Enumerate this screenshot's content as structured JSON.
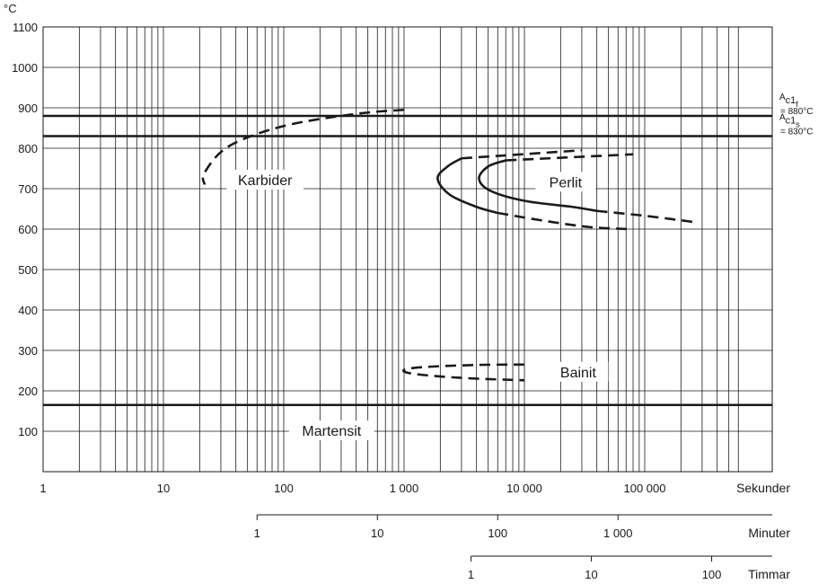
{
  "chart_data": {
    "type": "line",
    "title": "",
    "y_unit": "°C",
    "ylim": [
      0,
      1100
    ],
    "y_ticks": [
      "1100",
      "1000",
      "900",
      "800",
      "700",
      "600",
      "500",
      "400",
      "300",
      "200",
      "100"
    ],
    "x_scale": "log",
    "xlim": [
      1,
      600000
    ],
    "x_axes": [
      {
        "name": "Sekunder",
        "ticks": [
          {
            "label": "1",
            "seconds": 1
          },
          {
            "label": "10",
            "seconds": 10
          },
          {
            "label": "100",
            "seconds": 100
          },
          {
            "label": "1 000",
            "seconds": 1000
          },
          {
            "label": "10 000",
            "seconds": 10000
          },
          {
            "label": "100 000",
            "seconds": 100000
          }
        ]
      },
      {
        "name": "Minuter",
        "ticks": [
          {
            "label": "1",
            "seconds": 60
          },
          {
            "label": "10",
            "seconds": 600
          },
          {
            "label": "100",
            "seconds": 6000
          },
          {
            "label": "1 000",
            "seconds": 60000
          }
        ]
      },
      {
        "name": "Timmar",
        "ticks": [
          {
            "label": "1",
            "seconds": 3600
          },
          {
            "label": "10",
            "seconds": 36000
          },
          {
            "label": "100",
            "seconds": 360000
          }
        ]
      }
    ],
    "grid": true,
    "reference_lines": [
      {
        "label_main": "A",
        "label_sub": "c1",
        "label_subsub": "f",
        "label_value": "= 880°C",
        "y": 880
      },
      {
        "label_main": "A",
        "label_sub": "c1",
        "label_subsub": "s",
        "label_value": "= 830°C",
        "y": 830
      },
      {
        "y": 165
      }
    ],
    "curves": [
      {
        "name": "Karbider",
        "style": "dashed",
        "points": [
          [
            1000,
            895
          ],
          [
            400,
            885
          ],
          [
            100,
            855
          ],
          [
            35,
            805
          ],
          [
            22,
            740
          ],
          [
            22,
            710
          ]
        ]
      },
      {
        "name": "Perlit",
        "style": "dashed",
        "points": [
          [
            3000,
            775
          ],
          [
            30000,
            795
          ]
        ]
      },
      {
        "name": "Perlit",
        "style": "dashed",
        "points": [
          [
            7000,
            770
          ],
          [
            80000,
            785
          ]
        ]
      },
      {
        "name": "Perlit",
        "style": "solid",
        "points": [
          [
            3000,
            775
          ],
          [
            2300,
            755
          ],
          [
            1900,
            725
          ],
          [
            2400,
            685
          ],
          [
            4000,
            655
          ],
          [
            6000,
            640
          ]
        ]
      },
      {
        "name": "Perlit",
        "style": "solid",
        "points": [
          [
            7000,
            770
          ],
          [
            5000,
            755
          ],
          [
            4200,
            725
          ],
          [
            5200,
            695
          ],
          [
            10000,
            670
          ],
          [
            25000,
            655
          ],
          [
            40000,
            645
          ]
        ]
      },
      {
        "name": "Perlit",
        "style": "dashed",
        "points": [
          [
            6000,
            640
          ],
          [
            15000,
            620
          ],
          [
            35000,
            605
          ],
          [
            75000,
            600
          ]
        ]
      },
      {
        "name": "Perlit",
        "style": "dashed",
        "points": [
          [
            40000,
            645
          ],
          [
            100000,
            633
          ],
          [
            250000,
            618
          ]
        ]
      },
      {
        "name": "Bainit",
        "style": "dashed",
        "points": [
          [
            10000,
            265
          ],
          [
            4000,
            264
          ],
          [
            1500,
            259
          ],
          [
            1000,
            252
          ],
          [
            1200,
            242
          ],
          [
            3000,
            232
          ],
          [
            10000,
            226
          ]
        ]
      }
    ],
    "region_labels": [
      {
        "text": "Karbider",
        "x": 70,
        "y": 720
      },
      {
        "text": "Perlit",
        "x": 22000,
        "y": 715
      },
      {
        "text": "Bainit",
        "x": 28000,
        "y": 245
      },
      {
        "text": "Martensit",
        "x": 250,
        "y": 100
      }
    ]
  }
}
